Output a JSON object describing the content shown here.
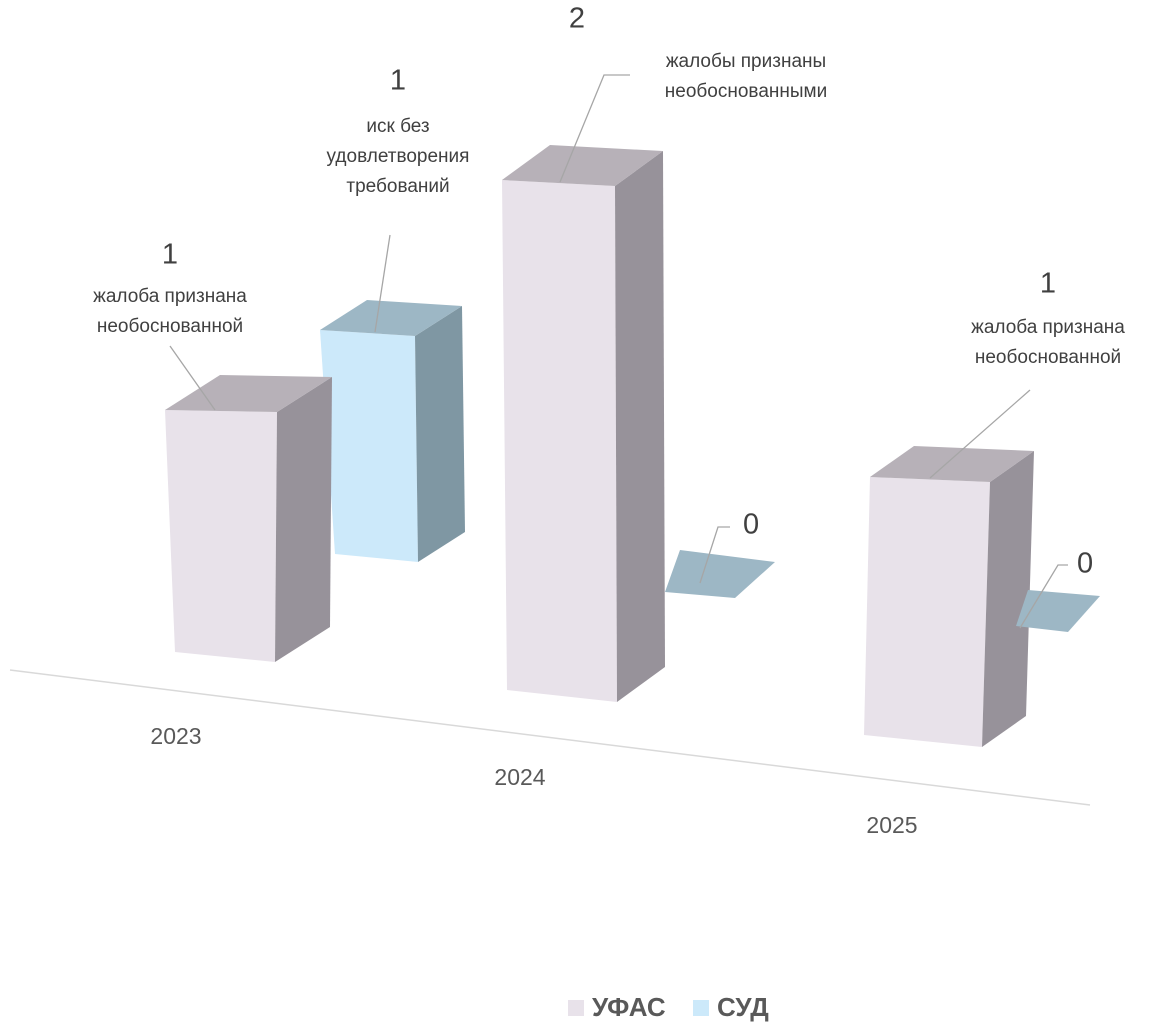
{
  "chart_data": {
    "type": "bar",
    "subtype": "3d-clustered-column",
    "title": "",
    "categories": [
      "2023",
      "2024",
      "2025"
    ],
    "series": [
      {
        "name": "УФАС",
        "values": [
          1,
          2,
          1
        ],
        "color": "#E8E2EA"
      },
      {
        "name": "СУД",
        "values": [
          1,
          0,
          0
        ],
        "color": "#CCE9FA"
      }
    ],
    "data_labels": [
      [
        {
          "value": "1",
          "caption": [
            "жалоба признана",
            "необоснованной"
          ]
        },
        {
          "value": "2",
          "caption": [
            "жалобы признаны",
            "необоснованными"
          ]
        },
        {
          "value": "1",
          "caption": [
            "жалоба признана",
            "необоснованной"
          ]
        }
      ],
      [
        {
          "value": "1",
          "caption": [
            "иск без",
            "удовлетворения",
            "требований"
          ]
        },
        {
          "value": "0",
          "caption": []
        },
        {
          "value": "0",
          "caption": []
        }
      ]
    ],
    "ylim": [
      0,
      2
    ],
    "grid": false,
    "legend_position": "bottom"
  }
}
